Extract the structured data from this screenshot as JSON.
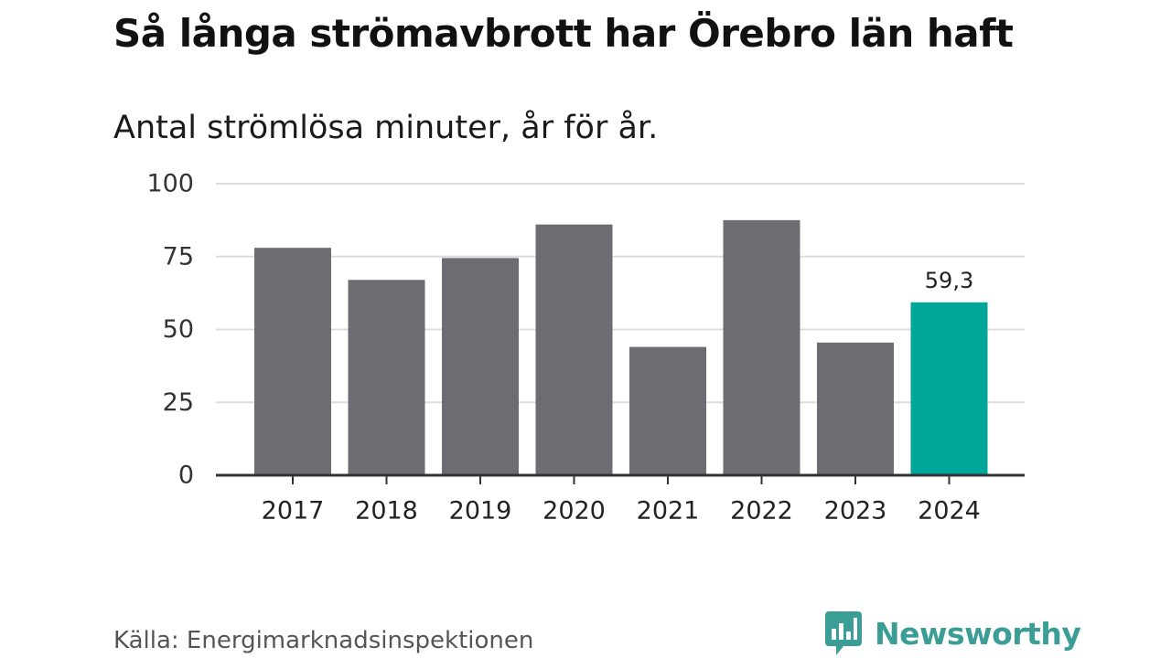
{
  "title": "Så långa strömavbrott har Örebro län haft",
  "subtitle": "Antal strömlösa minuter, år för år.",
  "source": "Källa: Energimarknadsinspektionen",
  "brand": {
    "name": "Newsworthy",
    "icon": "newsworthy-logo-icon"
  },
  "colors": {
    "bar_default": "#6d6c72",
    "bar_highlight": "#00a699",
    "grid": "#dddddd",
    "axis": "#333333",
    "brand": "#3a9e96"
  },
  "chart_data": {
    "type": "bar",
    "title": "Så långa strömavbrott har Örebro län haft",
    "subtitle": "Antal strömlösa minuter, år för år.",
    "xlabel": "",
    "ylabel": "",
    "categories": [
      "2017",
      "2018",
      "2019",
      "2020",
      "2021",
      "2022",
      "2023",
      "2024"
    ],
    "values": [
      78,
      67,
      74.5,
      86,
      44,
      87.5,
      45.5,
      59.3
    ],
    "highlight": [
      false,
      false,
      false,
      false,
      false,
      false,
      false,
      true
    ],
    "data_labels": [
      "",
      "",
      "",
      "",
      "",
      "",
      "",
      "59,3"
    ],
    "ylim": [
      0,
      100
    ],
    "yticks": [
      0,
      25,
      50,
      75,
      100
    ],
    "ytick_labels": [
      "0",
      "25",
      "50",
      "75",
      "100"
    ],
    "grid": true
  }
}
